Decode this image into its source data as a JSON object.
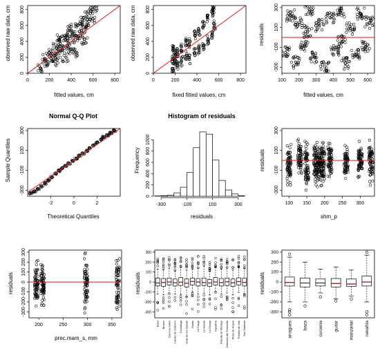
{
  "chart_data": [
    {
      "type": "scatter",
      "title": "",
      "xlabel": "fitted values, cm",
      "ylabel": "observed raw data, cm",
      "xlim": [
        0,
        850
      ],
      "ylim": [
        0,
        850
      ],
      "xticks": [
        0,
        200,
        400,
        600,
        800
      ],
      "yticks": [
        0,
        200,
        400,
        600,
        800
      ],
      "reference_line": {
        "type": "identity",
        "color": "#e01b1b"
      },
      "points": [
        [
          120,
          60
        ],
        [
          160,
          180
        ],
        [
          180,
          120
        ],
        [
          200,
          260
        ],
        [
          230,
          200
        ],
        [
          260,
          320
        ],
        [
          280,
          240
        ],
        [
          300,
          380
        ],
        [
          320,
          300
        ],
        [
          340,
          420
        ],
        [
          360,
          350
        ],
        [
          380,
          470
        ],
        [
          400,
          300
        ],
        [
          420,
          520
        ],
        [
          440,
          420
        ],
        [
          460,
          600
        ],
        [
          480,
          480
        ],
        [
          500,
          650
        ],
        [
          520,
          560
        ],
        [
          540,
          720
        ],
        [
          560,
          600
        ],
        [
          580,
          780
        ],
        [
          600,
          680
        ],
        [
          610,
          820
        ],
        [
          450,
          250
        ],
        [
          350,
          200
        ],
        [
          250,
          150
        ],
        [
          520,
          400
        ],
        [
          380,
          560
        ],
        [
          300,
          450
        ]
      ]
    },
    {
      "type": "scatter",
      "title": "",
      "xlabel": "fixed fitted values, cm",
      "ylabel": "observed raw data, cm",
      "xlim": [
        0,
        850
      ],
      "ylim": [
        0,
        850
      ],
      "xticks": [
        0,
        200,
        400,
        600,
        800
      ],
      "yticks": [
        0,
        200,
        400,
        600,
        800
      ],
      "reference_line": {
        "type": "identity",
        "color": "#e01b1b"
      },
      "points": [
        [
          180,
          60
        ],
        [
          180,
          180
        ],
        [
          180,
          300
        ],
        [
          200,
          120
        ],
        [
          200,
          240
        ],
        [
          220,
          100
        ],
        [
          220,
          260
        ],
        [
          260,
          150
        ],
        [
          260,
          330
        ],
        [
          300,
          220
        ],
        [
          300,
          400
        ],
        [
          330,
          180
        ],
        [
          330,
          380
        ],
        [
          380,
          250
        ],
        [
          380,
          480
        ],
        [
          420,
          300
        ],
        [
          420,
          520
        ],
        [
          460,
          350
        ],
        [
          460,
          600
        ],
        [
          500,
          420
        ],
        [
          500,
          680
        ],
        [
          540,
          480
        ],
        [
          540,
          760
        ],
        [
          550,
          820
        ],
        [
          560,
          600
        ]
      ]
    },
    {
      "type": "scatter",
      "title": "",
      "xlabel": "fitted values, cm",
      "ylabel": "residuals",
      "xlim": [
        100,
        640
      ],
      "ylim": [
        -360,
        320
      ],
      "xticks": [
        100,
        200,
        300,
        400,
        500,
        600
      ],
      "yticks": [
        -300,
        -100,
        100,
        300
      ],
      "reference_line": {
        "type": "horizontal",
        "y": 0,
        "color": "#e01b1b"
      },
      "points": [
        [
          120,
          -150
        ],
        [
          150,
          220
        ],
        [
          180,
          -250
        ],
        [
          200,
          150
        ],
        [
          230,
          -80
        ],
        [
          260,
          280
        ],
        [
          290,
          -200
        ],
        [
          320,
          120
        ],
        [
          350,
          -300
        ],
        [
          380,
          200
        ],
        [
          410,
          -120
        ],
        [
          440,
          260
        ],
        [
          470,
          -260
        ],
        [
          500,
          90
        ],
        [
          530,
          -180
        ],
        [
          560,
          240
        ],
        [
          590,
          -90
        ],
        [
          610,
          150
        ],
        [
          250,
          60
        ],
        [
          450,
          -40
        ]
      ]
    },
    {
      "type": "scatter",
      "title": "Normal Q-Q Plot",
      "xlabel": "Theoretical Quantiles",
      "ylabel": "Sample Quantiles",
      "xlim": [
        -4,
        4
      ],
      "ylim": [
        -360,
        320
      ],
      "xticks": [
        -2,
        0,
        2
      ],
      "yticks": [
        -300,
        -100,
        100,
        300
      ],
      "reference_line": {
        "type": "qq",
        "color": "#e01b1b"
      },
      "points": [
        [
          -3.7,
          -330
        ],
        [
          -3.4,
          -310
        ],
        [
          -3.1,
          -285
        ],
        [
          -2.8,
          -260
        ],
        [
          -2.5,
          -230
        ],
        [
          -2.2,
          -200
        ],
        [
          -1.9,
          -170
        ],
        [
          -1.6,
          -135
        ],
        [
          -1.3,
          -105
        ],
        [
          -1.0,
          -80
        ],
        [
          -0.7,
          -55
        ],
        [
          -0.4,
          -30
        ],
        [
          -0.1,
          -5
        ],
        [
          0.2,
          20
        ],
        [
          0.5,
          45
        ],
        [
          0.8,
          70
        ],
        [
          1.1,
          95
        ],
        [
          1.4,
          120
        ],
        [
          1.7,
          150
        ],
        [
          2.0,
          180
        ],
        [
          2.3,
          210
        ],
        [
          2.6,
          235
        ],
        [
          2.9,
          255
        ],
        [
          3.2,
          275
        ],
        [
          3.5,
          300
        ]
      ]
    },
    {
      "type": "bar",
      "title": "Histogram of residuals",
      "xlabel": "residuals",
      "ylabel": "Frequency",
      "xlim": [
        -360,
        360
      ],
      "ylim": [
        0,
        1200
      ],
      "xticks": [
        -300,
        -100,
        100,
        300
      ],
      "yticks": [
        0,
        200,
        400,
        600,
        800,
        1000
      ],
      "bin_edges": [
        -350,
        -300,
        -250,
        -200,
        -150,
        -100,
        -50,
        0,
        50,
        100,
        150,
        200,
        250,
        300,
        350
      ],
      "values": [
        5,
        10,
        20,
        60,
        160,
        420,
        860,
        1140,
        1100,
        640,
        280,
        110,
        40,
        10
      ]
    },
    {
      "type": "scatter",
      "title": "",
      "xlabel": "shm_p",
      "ylabel": "residuals",
      "xlim": [
        80,
        340
      ],
      "ylim": [
        -360,
        320
      ],
      "xticks": [
        100,
        150,
        200,
        250,
        300
      ],
      "yticks": [
        -300,
        -100,
        100,
        300
      ],
      "reference_line": {
        "type": "horizontal",
        "y": 0,
        "color": "#e01b1b"
      },
      "strips": [
        100,
        130,
        150,
        175,
        185,
        195,
        215,
        260,
        300,
        330
      ],
      "points": [
        [
          100,
          -250
        ],
        [
          100,
          180
        ],
        [
          130,
          -150
        ],
        [
          130,
          220
        ],
        [
          150,
          -300
        ],
        [
          150,
          200
        ],
        [
          175,
          -280
        ],
        [
          175,
          250
        ],
        [
          185,
          -200
        ],
        [
          185,
          150
        ],
        [
          195,
          -260
        ],
        [
          195,
          180
        ],
        [
          215,
          -220
        ],
        [
          215,
          210
        ],
        [
          260,
          -200
        ],
        [
          260,
          150
        ],
        [
          300,
          -180
        ],
        [
          300,
          200
        ],
        [
          330,
          -250
        ],
        [
          330,
          230
        ]
      ]
    },
    {
      "type": "scatter",
      "title": "",
      "xlabel": "prec.mam_s, mm",
      "ylabel": "residuals",
      "xlim": [
        180,
        370
      ],
      "ylim": [
        -360,
        320
      ],
      "xticks": [
        200,
        250,
        300,
        350
      ],
      "yticks": [
        -300,
        -200,
        -100,
        0,
        100,
        200,
        300
      ],
      "reference_line": {
        "type": "horizontal",
        "y": 0,
        "color": "#e01b1b"
      },
      "strips": [
        195,
        208,
        297,
        362
      ],
      "points": [
        [
          195,
          -250
        ],
        [
          195,
          220
        ],
        [
          208,
          -240
        ],
        [
          208,
          180
        ],
        [
          297,
          -330
        ],
        [
          297,
          300
        ],
        [
          362,
          -330
        ],
        [
          362,
          260
        ]
      ]
    },
    {
      "type": "box",
      "title": "",
      "xlabel": "",
      "ylabel": "residuals",
      "ylim": [
        -360,
        320
      ],
      "yticks": [
        -300,
        -200,
        -100,
        0,
        100,
        200,
        300
      ],
      "categories": [
        "Baza",
        "Binaco",
        "Cuenca-Vales",
        "Lobato de Cabrero",
        "Covadoga",
        "Gaia de los Sabias",
        "Gúdar",
        "La Carga",
        "La Rueda",
        "La Granja",
        "Navalfría",
        "Aranda de Montejo",
        "Orihuela del Tremedal",
        "Pinar de Hoyos",
        "Puebla de Lillo",
        "San Zadornil"
      ],
      "boxes": [
        {
          "q1": -40,
          "median": -10,
          "q3": 40,
          "lo": -120,
          "hi": 130
        },
        {
          "q1": -45,
          "median": -5,
          "q3": 35,
          "lo": -130,
          "hi": 120
        },
        {
          "q1": -30,
          "median": 0,
          "q3": 40,
          "lo": -110,
          "hi": 140
        },
        {
          "q1": -40,
          "median": -8,
          "q3": 30,
          "lo": -120,
          "hi": 110
        },
        {
          "q1": -35,
          "median": -2,
          "q3": 45,
          "lo": -125,
          "hi": 150
        },
        {
          "q1": -50,
          "median": -12,
          "q3": 30,
          "lo": -150,
          "hi": 120
        },
        {
          "q1": -30,
          "median": 5,
          "q3": 40,
          "lo": -100,
          "hi": 130
        },
        {
          "q1": -40,
          "median": 0,
          "q3": 35,
          "lo": -120,
          "hi": 140
        },
        {
          "q1": -35,
          "median": -5,
          "q3": 40,
          "lo": -110,
          "hi": 160
        },
        {
          "q1": -45,
          "median": -10,
          "q3": 25,
          "lo": -130,
          "hi": 110
        },
        {
          "q1": -30,
          "median": 0,
          "q3": 45,
          "lo": -100,
          "hi": 150
        },
        {
          "q1": -40,
          "median": -6,
          "q3": 35,
          "lo": -120,
          "hi": 130
        },
        {
          "q1": -35,
          "median": 2,
          "q3": 40,
          "lo": -110,
          "hi": 140
        },
        {
          "q1": -45,
          "median": -8,
          "q3": 30,
          "lo": -130,
          "hi": 120
        },
        {
          "q1": -30,
          "median": 4,
          "q3": 42,
          "lo": -105,
          "hi": 150
        },
        {
          "q1": -40,
          "median": -4,
          "q3": 38,
          "lo": -120,
          "hi": 140
        }
      ]
    },
    {
      "type": "box",
      "title": "",
      "xlabel": "",
      "ylabel": "residuals",
      "ylim": [
        -360,
        320
      ],
      "yticks": [
        -300,
        -200,
        -100,
        0,
        100,
        200,
        300
      ],
      "categories": [
        "arragues",
        "baza",
        "curuena",
        "gudar",
        "manzanal",
        "navafria"
      ],
      "boxes": [
        {
          "q1": -40,
          "median": -5,
          "q3": 50,
          "lo": -200,
          "hi": 250,
          "out": [
            -330,
            -300,
            -280,
            280
          ]
        },
        {
          "q1": -50,
          "median": -10,
          "q3": 40,
          "lo": -200,
          "hi": 200,
          "out": [
            -240
          ]
        },
        {
          "q1": -40,
          "median": -10,
          "q3": 30,
          "lo": -110,
          "hi": 130,
          "out": [
            -150
          ]
        },
        {
          "q1": -50,
          "median": -15,
          "q3": 35,
          "lo": -170,
          "hi": 150,
          "out": [
            -190
          ]
        },
        {
          "q1": -45,
          "median": -20,
          "q3": 30,
          "lo": -140,
          "hi": 120,
          "out": [
            -170
          ]
        },
        {
          "q1": -40,
          "median": 0,
          "q3": 60,
          "lo": -200,
          "hi": 270,
          "out": [
            -330,
            -300,
            300
          ]
        }
      ]
    }
  ]
}
